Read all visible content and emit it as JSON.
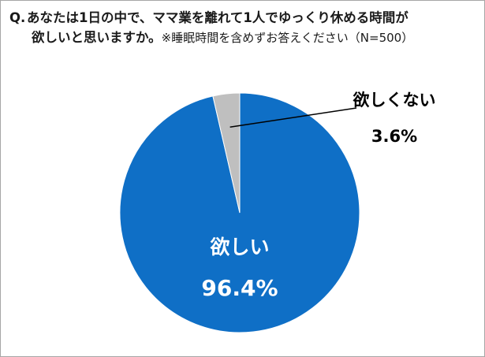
{
  "question": {
    "prefix": "Q.",
    "line1": "あなたは1日の中で、ママ業を離れて1人でゆっくり休める時間が",
    "line2": "欲しいと思いますか。",
    "note": "※睡眠時間を含めずお答えください（N=500）"
  },
  "colors": {
    "want": "#0f6fc6",
    "not_want": "#bfbfbf",
    "label_inside": "#ffffff",
    "label_outside": "#000000"
  },
  "chart_data": {
    "type": "pie",
    "slices": [
      {
        "label": "欲しい",
        "value": 96.4,
        "display": "96.4%"
      },
      {
        "label": "欲しくない",
        "value": 3.6,
        "display": "3.6%"
      }
    ]
  }
}
